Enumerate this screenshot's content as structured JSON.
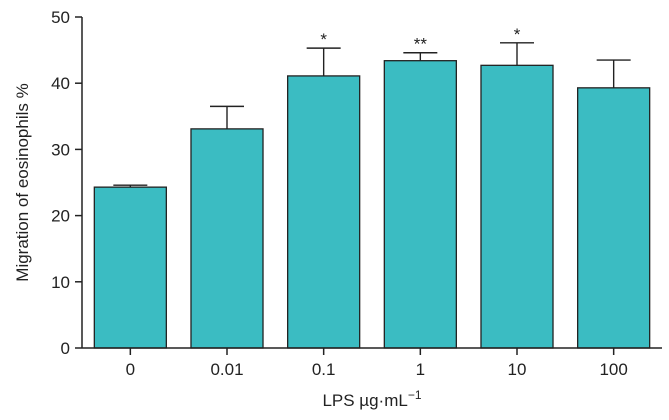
{
  "chart_data": {
    "type": "bar",
    "title": "",
    "xlabel": "LPS µg·mL",
    "xlabel_superscript": "−1",
    "ylabel": "Migration of eosinophils %",
    "ylim": [
      0,
      50
    ],
    "yticks": [
      0,
      10,
      20,
      30,
      40,
      50
    ],
    "categories": [
      "0",
      "0.01",
      "0.1",
      "1",
      "10",
      "100"
    ],
    "values": [
      24.3,
      33.1,
      41.1,
      43.4,
      42.7,
      39.3
    ],
    "error_upper": [
      0.3,
      3.4,
      4.2,
      1.2,
      3.4,
      4.2
    ],
    "significance": [
      "",
      "",
      "*",
      "**",
      "*",
      ""
    ],
    "bar_color": "#3bbcc2",
    "bar_edge_color": "#222222",
    "grid": false,
    "legend": "none"
  }
}
